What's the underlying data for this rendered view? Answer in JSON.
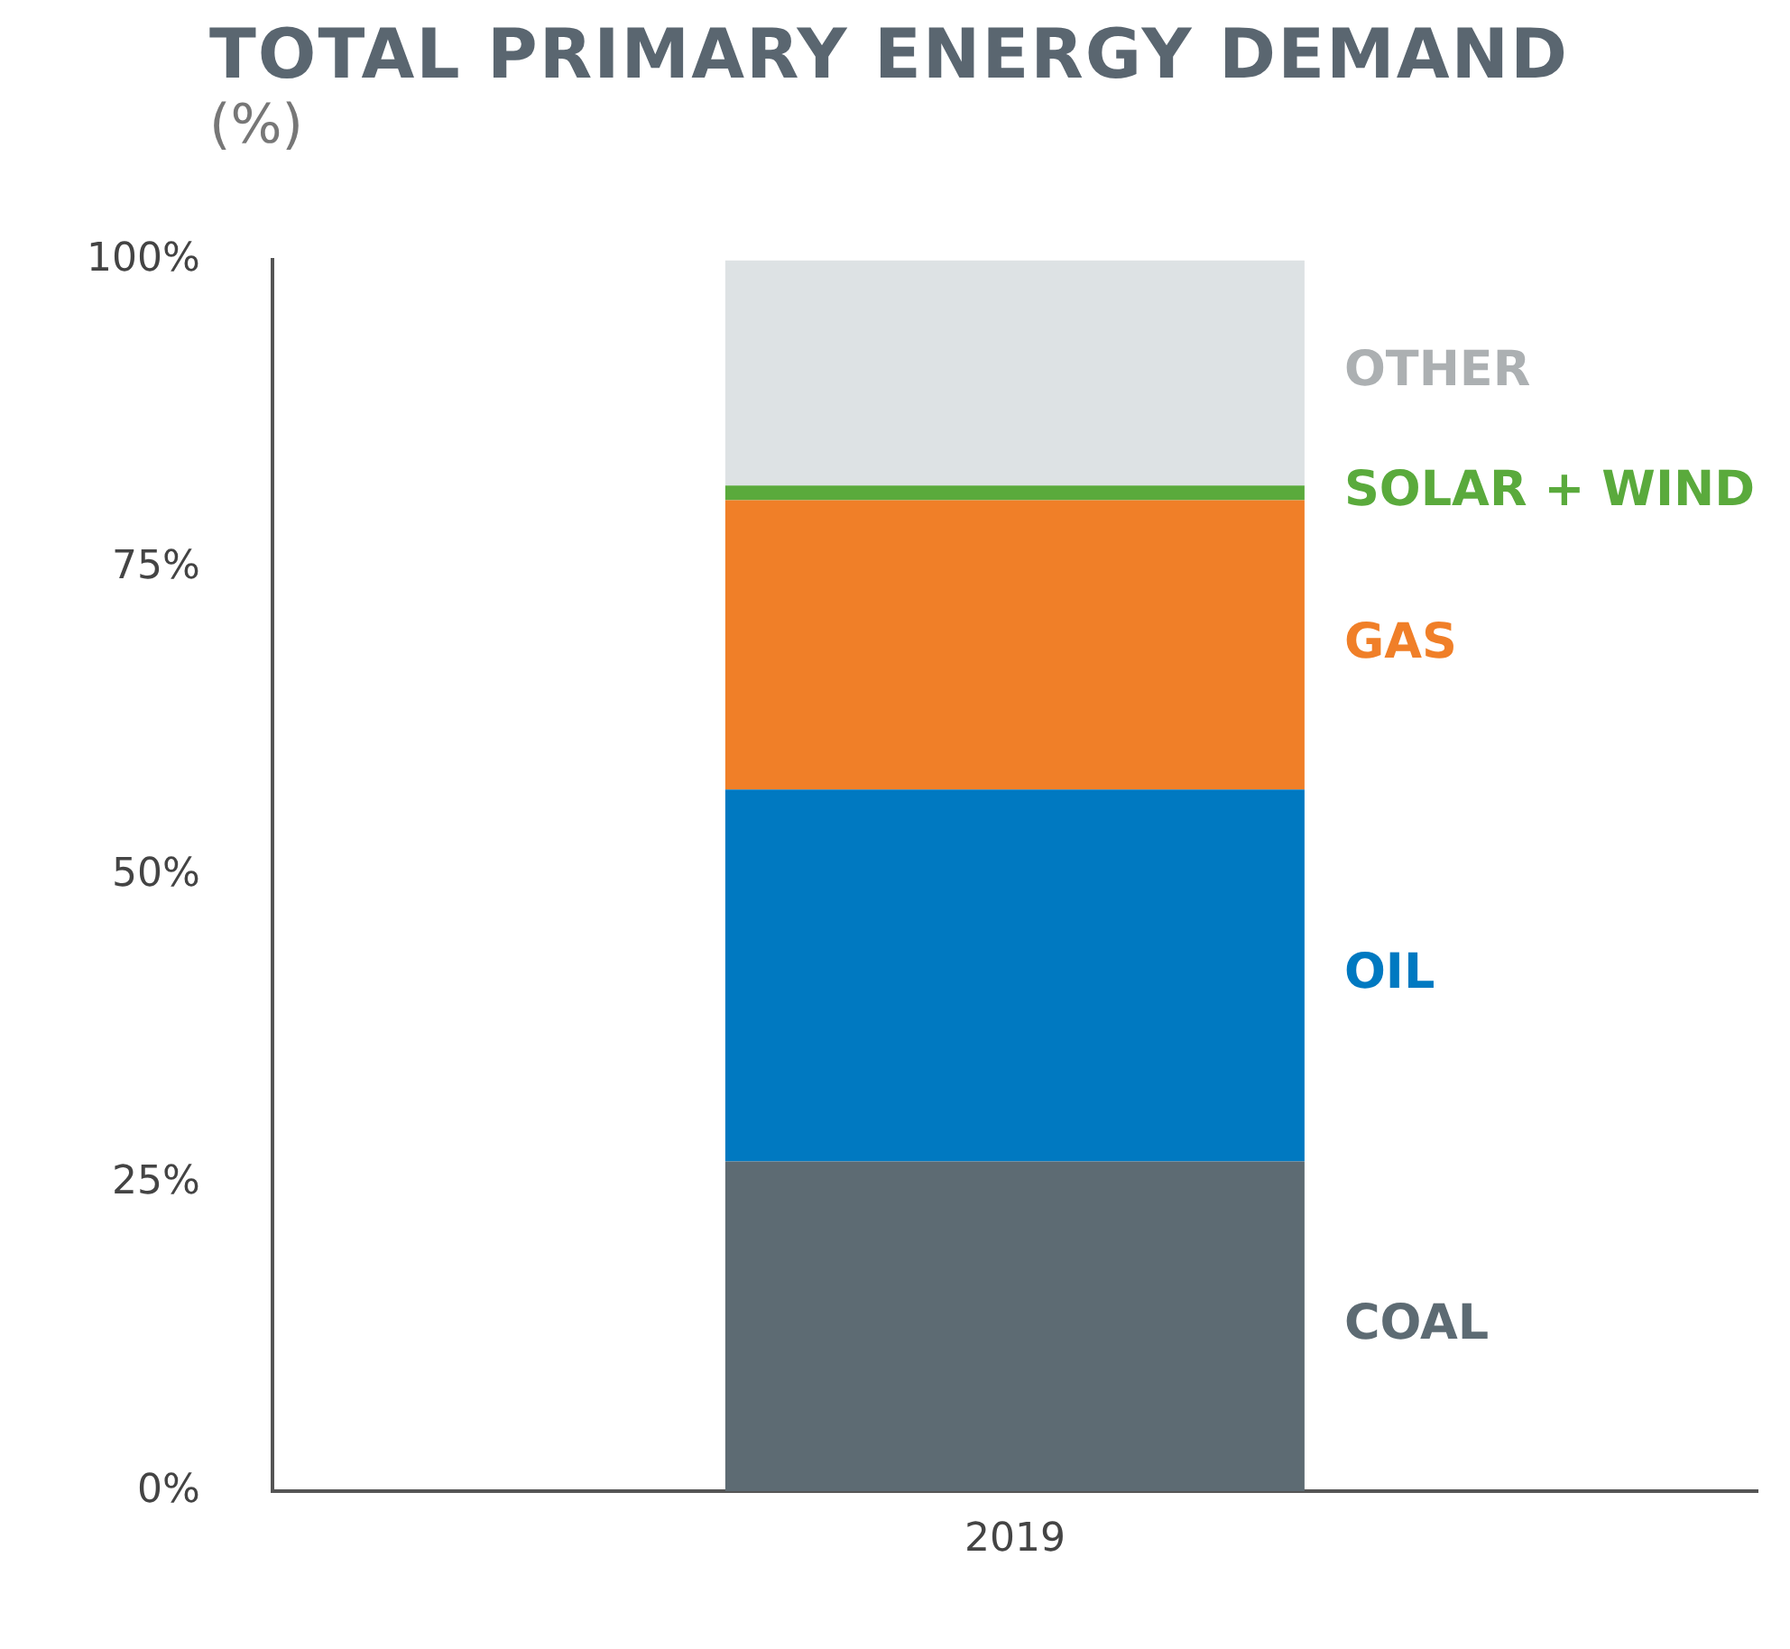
{
  "chart_data": {
    "type": "bar",
    "title": "TOTAL PRIMARY ENERGY DEMAND",
    "subtitle": "(%)",
    "categories": [
      "2019"
    ],
    "stacked": true,
    "legend": false,
    "grid": false,
    "ylim": [
      0,
      100
    ],
    "yticks": [
      {
        "value": 0,
        "label": "0%"
      },
      {
        "value": 25,
        "label": "25%"
      },
      {
        "value": 50,
        "label": "50%"
      },
      {
        "value": 75,
        "label": "75%"
      },
      {
        "value": 100,
        "label": "100%"
      }
    ],
    "series": [
      {
        "name": "COAL",
        "color": "#5d6b73",
        "values": [
          26.8
        ]
      },
      {
        "name": "OIL",
        "color": "#0079c1",
        "values": [
          30.2
        ]
      },
      {
        "name": "GAS",
        "color": "#f07f28",
        "values": [
          23.5
        ]
      },
      {
        "name": "SOLAR + WIND",
        "color": "#5aaa3c",
        "values": [
          1.2
        ]
      },
      {
        "name": "OTHER",
        "color": "#dde2e4",
        "values": [
          18.3
        ]
      }
    ]
  }
}
